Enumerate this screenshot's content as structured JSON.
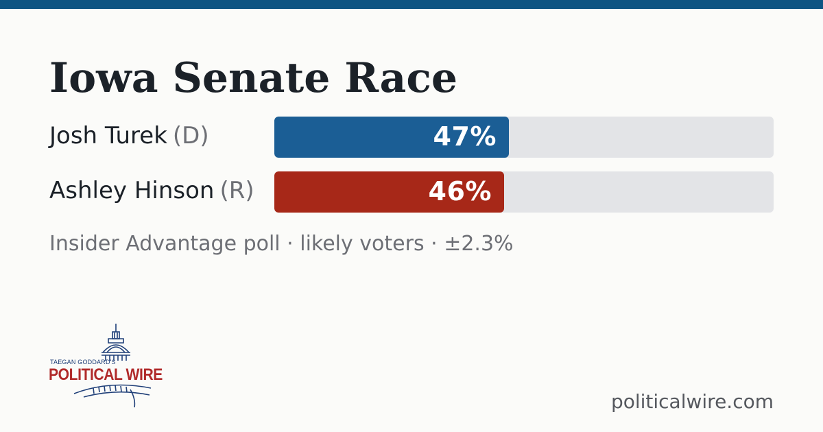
{
  "colors": {
    "top_stripe": "#0e5483",
    "dem": "#1b5e95",
    "rep": "#a72818",
    "track": "#e3e4e7",
    "text": "#1b2128",
    "muted": "#6d6f75"
  },
  "chart_data": {
    "type": "bar",
    "orientation": "horizontal",
    "title": "Iowa Senate Race",
    "categories": [
      "Josh Turek",
      "Ashley Hinson"
    ],
    "parties": [
      "(D)",
      "(R)"
    ],
    "values": [
      47,
      46
    ],
    "value_labels": [
      "47%",
      "46%"
    ],
    "xlim": [
      0,
      100
    ],
    "grid": false,
    "legend": "none",
    "note": "Insider Advantage poll · likely voters · ±2.3%"
  },
  "logo": {
    "small_text": "TAEGAN GODDARD'S",
    "big_text": "POLITICAL WIRE",
    "icon": "capitol-dome-icon"
  },
  "footer": {
    "site": "politicalwire.com"
  }
}
